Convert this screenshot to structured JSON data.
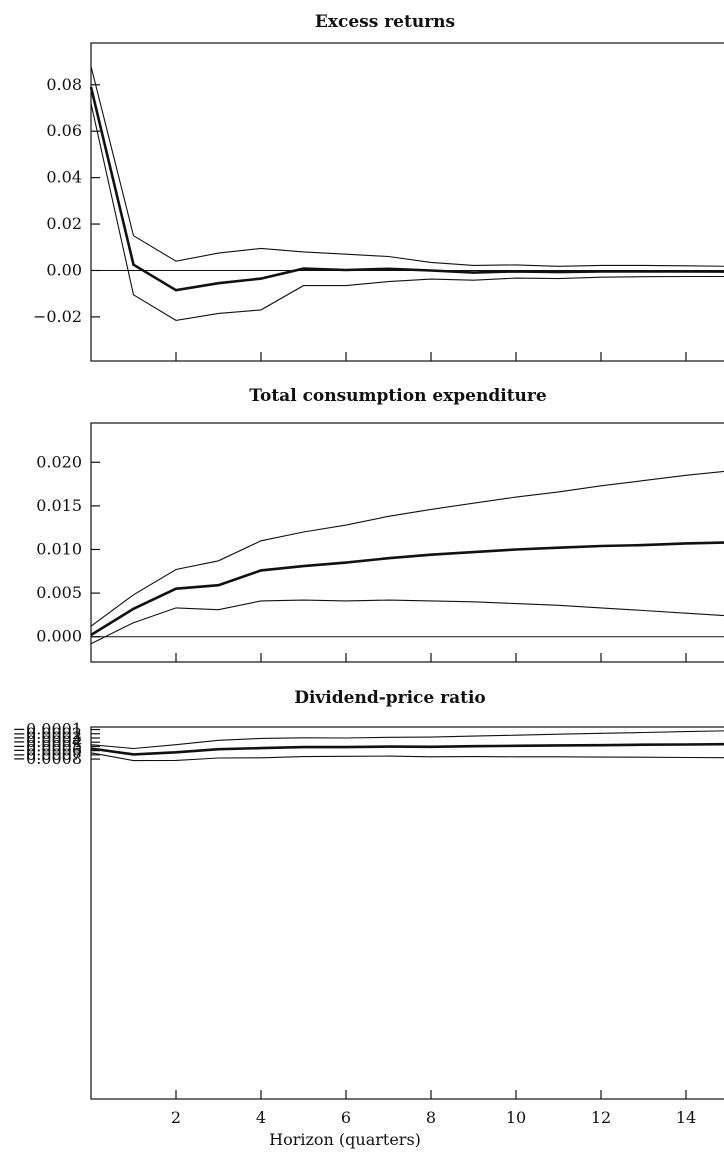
{
  "chart_data": [
    {
      "type": "line",
      "title": "Excess returns",
      "xlabel": "",
      "ylabel": "",
      "xlim": [
        0,
        15
      ],
      "ylim": [
        -0.039,
        0.098
      ],
      "x_ticks": [
        2,
        4,
        6,
        8,
        10,
        12,
        14
      ],
      "x_tick_labels": [],
      "y_ticks": [
        0.08,
        0.06,
        0.04,
        0.02,
        0.0,
        -0.02
      ],
      "y_tick_labels": [
        "0.08",
        "0.06",
        "0.04",
        "0.02",
        "0.00",
        "−0.02"
      ],
      "reference_line": 0,
      "x": [
        0,
        1,
        2,
        3,
        4,
        5,
        6,
        7,
        8,
        9,
        10,
        11,
        12,
        13,
        14,
        15
      ],
      "series": [
        {
          "role": "upper",
          "values": [
            0.088,
            0.015,
            0.004,
            0.0075,
            0.0095,
            0.008,
            0.007,
            0.006,
            0.0035,
            0.0022,
            0.0024,
            0.0018,
            0.0022,
            0.0022,
            0.002,
            0.0018
          ]
        },
        {
          "role": "estimate",
          "values": [
            0.079,
            0.0025,
            -0.0085,
            -0.0055,
            -0.0035,
            0.0008,
            0.0002,
            0.0007,
            0.0,
            -0.0009,
            -0.0004,
            -0.0007,
            -0.0004,
            -0.0004,
            -0.0004,
            -0.0005
          ]
        },
        {
          "role": "lower",
          "values": [
            0.072,
            -0.0105,
            -0.0215,
            -0.0185,
            -0.017,
            -0.0065,
            -0.0065,
            -0.0048,
            -0.0037,
            -0.0042,
            -0.0033,
            -0.0035,
            -0.0029,
            -0.0027,
            -0.0026,
            -0.0026
          ]
        }
      ]
    },
    {
      "type": "line",
      "title": "Total consumption expenditure",
      "xlabel": "",
      "ylabel": "",
      "xlim": [
        0,
        15
      ],
      "ylim": [
        -0.0029,
        0.0245
      ],
      "x_ticks": [
        2,
        4,
        6,
        8,
        10,
        12,
        14
      ],
      "x_tick_labels": [],
      "y_ticks": [
        0.02,
        0.015,
        0.01,
        0.005,
        0.0
      ],
      "y_tick_labels": [
        "0.020",
        "0.015",
        "0.010",
        "0.005",
        "0.000"
      ],
      "reference_line": 0,
      "x": [
        0,
        1,
        2,
        3,
        4,
        5,
        6,
        7,
        8,
        9,
        10,
        11,
        12,
        13,
        14,
        15
      ],
      "series": [
        {
          "role": "upper",
          "values": [
            0.0012,
            0.0048,
            0.0077,
            0.0087,
            0.011,
            0.012,
            0.0128,
            0.0138,
            0.0146,
            0.0153,
            0.016,
            0.0166,
            0.0173,
            0.0179,
            0.0185,
            0.019
          ]
        },
        {
          "role": "estimate",
          "values": [
            0.0002,
            0.0032,
            0.0055,
            0.0059,
            0.0076,
            0.0081,
            0.0085,
            0.009,
            0.0094,
            0.0097,
            0.01,
            0.0102,
            0.0104,
            0.0105,
            0.0107,
            0.0108
          ]
        },
        {
          "role": "lower",
          "values": [
            -0.0008,
            0.0016,
            0.0033,
            0.0031,
            0.0041,
            0.0042,
            0.0041,
            0.0042,
            0.0041,
            0.004,
            0.0038,
            0.0036,
            0.0033,
            0.003,
            0.0027,
            0.0024
          ]
        }
      ]
    },
    {
      "type": "line",
      "title": "Dividend-price ratio",
      "xlabel": "Horizon (quarters)",
      "ylabel": "",
      "xlim": [
        0,
        15
      ],
      "ylim": [
        -0.00885,
        -4e-05
      ],
      "x_ticks": [
        2,
        4,
        6,
        8,
        10,
        12,
        14
      ],
      "x_tick_labels": [
        "2",
        "4",
        "6",
        "8",
        "10",
        "12",
        "14"
      ],
      "y_ticks": [
        -0.0001,
        -0.0002,
        -0.0003,
        -0.0004,
        -0.0005,
        -0.0006,
        -0.0007,
        -0.0008
      ],
      "y_tick_labels": [
        "−0.0001",
        "−0.0002",
        "−0.0003",
        "−0.0004",
        "−0.0005",
        "−0.0006",
        "−0.0007",
        "−0.0008"
      ],
      "x": [
        0,
        1,
        2,
        3,
        4,
        5,
        6,
        7,
        8,
        9,
        10,
        11,
        12,
        13,
        14,
        15
      ],
      "series": [
        {
          "role": "upper",
          "values": [
            -0.00046,
            -0.00055,
            -0.00046,
            -0.000355,
            -0.00031,
            -0.000295,
            -0.0003,
            -0.000285,
            -0.00028,
            -0.000255,
            -0.000235,
            -0.00021,
            -0.00019,
            -0.00017,
            -0.00015,
            -0.00013
          ]
        },
        {
          "role": "estimate",
          "values": [
            -0.00055,
            -0.00069,
            -0.00064,
            -0.000565,
            -0.00054,
            -0.000515,
            -0.000515,
            -0.000505,
            -0.00051,
            -0.000495,
            -0.000485,
            -0.000475,
            -0.00047,
            -0.00046,
            -0.000455,
            -0.000448
          ]
        },
        {
          "role": "lower",
          "values": [
            -0.00065,
            -0.000835,
            -0.00083,
            -0.000775,
            -0.00077,
            -0.00074,
            -0.000735,
            -0.00073,
            -0.000745,
            -0.000742,
            -0.000745,
            -0.000745,
            -0.000752,
            -0.000755,
            -0.000762,
            -0.000767
          ]
        }
      ]
    }
  ]
}
